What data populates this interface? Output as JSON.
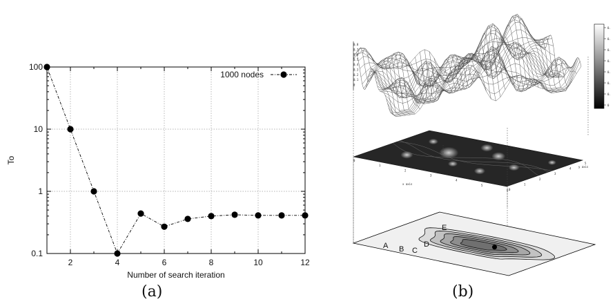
{
  "captions": {
    "a": "(a)",
    "b": "(b)"
  },
  "chart_data": [
    {
      "type": "line",
      "xlabel": "Number of search iteration",
      "ylabel": "To",
      "yscale": "log",
      "xlim": [
        1,
        12
      ],
      "ylim": [
        0.1,
        100
      ],
      "xticks": [
        2,
        4,
        6,
        8,
        10,
        12
      ],
      "yticks": [
        0.1,
        1,
        10,
        100
      ],
      "ytick_labels": [
        "0.1",
        "1",
        "10",
        "100"
      ],
      "grid": true,
      "legend_position": "top-right",
      "series": [
        {
          "name": "1000 nodes",
          "x": [
            1,
            2,
            3,
            4,
            5,
            6,
            7,
            8,
            9,
            10,
            11,
            12
          ],
          "values": [
            100,
            10,
            1,
            0.1,
            0.44,
            0.27,
            0.36,
            0.4,
            0.42,
            0.41,
            0.41,
            0.41
          ],
          "color": "#000000",
          "marker": "filled-circle",
          "line_style": "dash-dot"
        }
      ]
    },
    {
      "type": "surface",
      "z_ticks": [
        "0.8",
        "0.7",
        "0.6",
        "0.5",
        "0.4",
        "0.3",
        "0.2",
        "0.1",
        "0"
      ],
      "colorbar_ticks": [
        "0.",
        "0.",
        "0.",
        "0.",
        "0.",
        "0.",
        "0.",
        "0"
      ],
      "x_axis_label": "x axis",
      "y_axis_label": "y axis",
      "x_ticks": [
        "0",
        "1",
        "2",
        "3",
        "4",
        "5",
        "6"
      ],
      "y_ticks": [
        "0",
        "1",
        "2",
        "3",
        "4",
        "5"
      ],
      "region_labels": [
        "A",
        "B",
        "C",
        "D",
        "E"
      ]
    }
  ]
}
